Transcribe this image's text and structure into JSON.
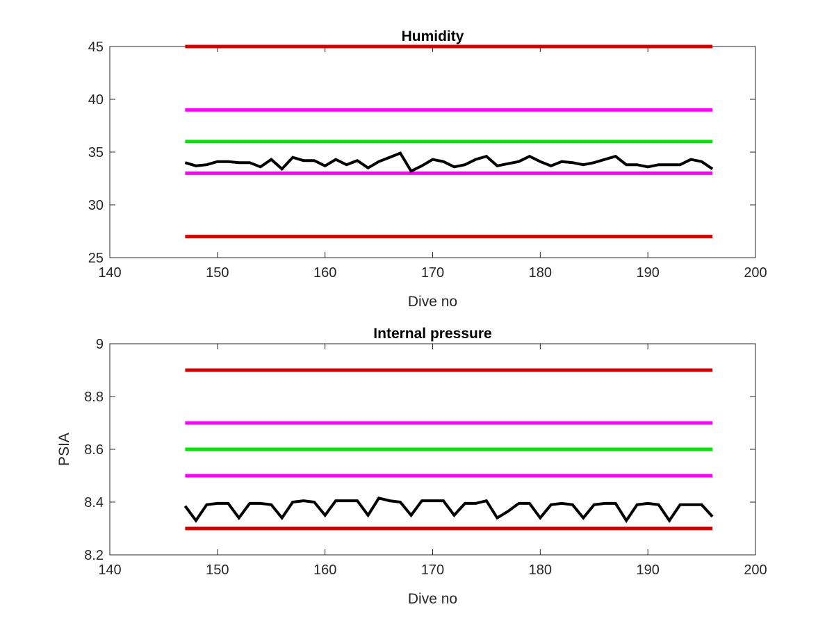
{
  "chart_data": [
    {
      "type": "line",
      "title": "Humidity",
      "xlabel": "Dive no",
      "ylabel": "",
      "xlim": [
        140,
        200
      ],
      "ylim": [
        25,
        45
      ],
      "xticks": [
        "140",
        "150",
        "160",
        "170",
        "180",
        "190",
        "200"
      ],
      "yticks": [
        "25",
        "30",
        "35",
        "40",
        "45"
      ],
      "grid": false,
      "limits": [
        {
          "value": 45,
          "color": "#d40000"
        },
        {
          "value": 39,
          "color": "#ff00ff"
        },
        {
          "value": 36,
          "color": "#00e600"
        },
        {
          "value": 33,
          "color": "#ff00ff"
        },
        {
          "value": 27,
          "color": "#d40000"
        }
      ],
      "x_range": [
        147,
        196
      ],
      "series": [
        {
          "color": "#000000",
          "x": [
            147,
            148,
            149,
            150,
            151,
            152,
            153,
            154,
            155,
            156,
            157,
            158,
            159,
            160,
            161,
            162,
            163,
            164,
            165,
            166,
            167,
            168,
            169,
            170,
            171,
            172,
            173,
            174,
            175,
            176,
            177,
            178,
            179,
            180,
            181,
            182,
            183,
            184,
            185,
            186,
            187,
            188,
            189,
            190,
            191,
            192,
            193,
            194,
            195,
            196
          ],
          "values": [
            34.0,
            33.7,
            33.8,
            34.1,
            34.1,
            34.0,
            34.0,
            33.6,
            34.3,
            33.4,
            34.5,
            34.2,
            34.2,
            33.7,
            34.3,
            33.8,
            34.2,
            33.5,
            34.1,
            34.5,
            34.9,
            33.2,
            33.7,
            34.3,
            34.1,
            33.6,
            33.8,
            34.3,
            34.6,
            33.7,
            33.9,
            34.1,
            34.6,
            34.1,
            33.7,
            34.1,
            34.0,
            33.8,
            34.0,
            34.3,
            34.6,
            33.8,
            33.8,
            33.6,
            33.8,
            33.8,
            33.8,
            34.3,
            34.1,
            33.4
          ]
        }
      ]
    },
    {
      "type": "line",
      "title": "Internal pressure",
      "xlabel": "Dive no",
      "ylabel": "PSIA",
      "xlim": [
        140,
        200
      ],
      "ylim": [
        8.2,
        9.0
      ],
      "xticks": [
        "140",
        "150",
        "160",
        "170",
        "180",
        "190",
        "200"
      ],
      "yticks": [
        "8.2",
        "8.4",
        "8.6",
        "8.8",
        "9"
      ],
      "grid": false,
      "limits": [
        {
          "value": 8.9,
          "color": "#d40000"
        },
        {
          "value": 8.7,
          "color": "#ff00ff"
        },
        {
          "value": 8.6,
          "color": "#00e600"
        },
        {
          "value": 8.5,
          "color": "#ff00ff"
        },
        {
          "value": 8.3,
          "color": "#d40000"
        }
      ],
      "x_range": [
        147,
        196
      ],
      "series": [
        {
          "color": "#000000",
          "x": [
            147,
            148,
            149,
            150,
            151,
            152,
            153,
            154,
            155,
            156,
            157,
            158,
            159,
            160,
            161,
            162,
            163,
            164,
            165,
            166,
            167,
            168,
            169,
            170,
            171,
            172,
            173,
            174,
            175,
            176,
            177,
            178,
            179,
            180,
            181,
            182,
            183,
            184,
            185,
            186,
            187,
            188,
            189,
            190,
            191,
            192,
            193,
            194,
            195,
            196
          ],
          "values": [
            8.385,
            8.33,
            8.39,
            8.395,
            8.395,
            8.34,
            8.395,
            8.395,
            8.39,
            8.34,
            8.4,
            8.405,
            8.4,
            8.35,
            8.405,
            8.405,
            8.405,
            8.35,
            8.415,
            8.405,
            8.4,
            8.35,
            8.405,
            8.405,
            8.405,
            8.35,
            8.395,
            8.395,
            8.405,
            8.34,
            8.365,
            8.395,
            8.395,
            8.34,
            8.39,
            8.395,
            8.39,
            8.34,
            8.39,
            8.395,
            8.395,
            8.33,
            8.39,
            8.395,
            8.39,
            8.33,
            8.39,
            8.39,
            8.39,
            8.345
          ]
        }
      ]
    }
  ]
}
